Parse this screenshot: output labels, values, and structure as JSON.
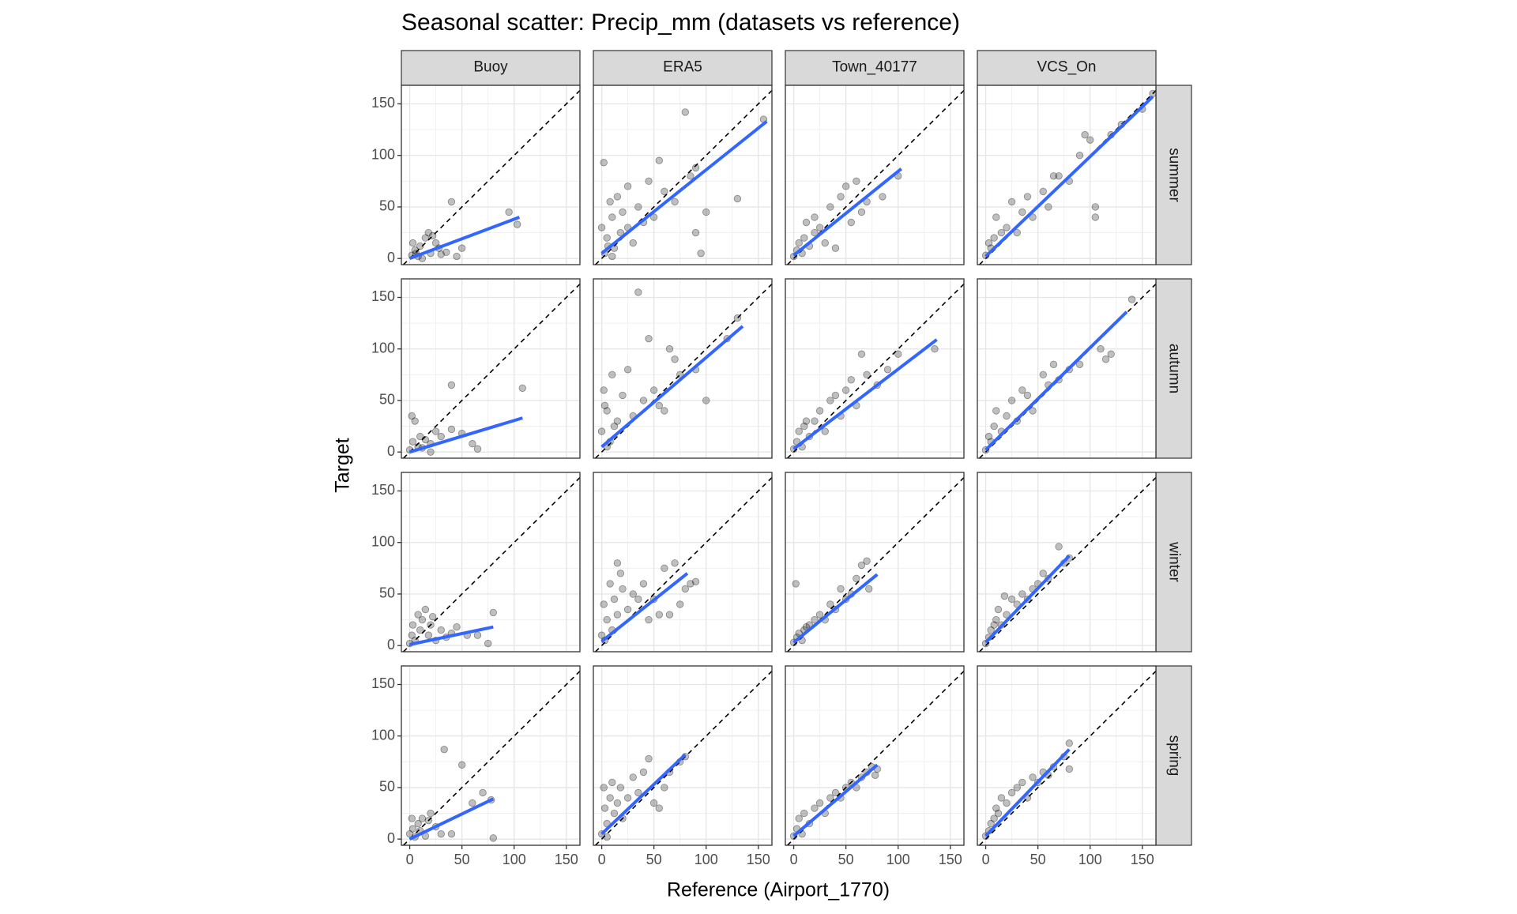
{
  "chart_data": {
    "type": "scatter",
    "title": "Seasonal scatter: Precip_mm (datasets vs reference)",
    "x_label": "Reference (Airport_1770)",
    "y_label": "Target",
    "columns": [
      "Buoy",
      "ERA5",
      "Town_40177",
      "VCS_On"
    ],
    "rows": [
      "summer",
      "autumn",
      "winter",
      "spring"
    ],
    "xlim": [
      -8,
      163
    ],
    "ylim": [
      -6,
      168
    ],
    "xticks": [
      0,
      50,
      100,
      150
    ],
    "yticks": [
      0,
      50,
      100,
      150
    ],
    "xminor": [
      25,
      75,
      125
    ],
    "yminor": [
      25,
      75,
      125
    ],
    "grid": true,
    "point_color": "#000000",
    "point_alpha": 0.25,
    "fit_color": "#3366FF",
    "panels": [
      [
        {
          "x": [
            2,
            5,
            8,
            10,
            15,
            18,
            20,
            25,
            30,
            35,
            40,
            50,
            95,
            103,
            12,
            3,
            22,
            45,
            28,
            6
          ],
          "y": [
            3,
            8,
            2,
            12,
            20,
            25,
            5,
            15,
            4,
            6,
            55,
            10,
            45,
            33,
            0,
            15,
            22,
            2,
            10,
            5
          ],
          "fit_x": [
            0,
            105
          ],
          "fit_y": [
            0,
            40
          ]
        },
        {
          "x": [
            0,
            2,
            5,
            8,
            10,
            12,
            15,
            18,
            20,
            25,
            30,
            35,
            40,
            45,
            50,
            55,
            60,
            70,
            80,
            85,
            90,
            90,
            95,
            100,
            130,
            155,
            3,
            6,
            10,
            25
          ],
          "y": [
            30,
            93,
            20,
            55,
            40,
            10,
            60,
            25,
            45,
            70,
            15,
            50,
            35,
            75,
            40,
            95,
            65,
            55,
            142,
            80,
            25,
            88,
            5,
            45,
            58,
            135,
            5,
            12,
            2,
            30
          ],
          "fit_x": [
            0,
            158
          ],
          "fit_y": [
            5,
            133
          ]
        },
        {
          "x": [
            0,
            3,
            5,
            8,
            10,
            15,
            20,
            25,
            30,
            35,
            40,
            45,
            50,
            55,
            60,
            65,
            70,
            85,
            100,
            12,
            20
          ],
          "y": [
            2,
            8,
            15,
            5,
            20,
            12,
            25,
            30,
            15,
            50,
            10,
            60,
            70,
            35,
            75,
            45,
            55,
            60,
            80,
            35,
            40
          ],
          "fit_x": [
            0,
            103
          ],
          "fit_y": [
            3,
            87
          ]
        },
        {
          "x": [
            0,
            5,
            8,
            10,
            15,
            20,
            25,
            30,
            35,
            40,
            45,
            55,
            60,
            65,
            70,
            80,
            90,
            95,
            100,
            105,
            105,
            120,
            130,
            150,
            160,
            3
          ],
          "y": [
            3,
            10,
            20,
            40,
            25,
            30,
            55,
            25,
            45,
            60,
            40,
            65,
            50,
            80,
            80,
            75,
            100,
            120,
            115,
            40,
            50,
            120,
            130,
            145,
            160,
            15
          ],
          "fit_x": [
            0,
            160
          ],
          "fit_y": [
            2,
            157
          ]
        }
      ],
      [
        {
          "x": [
            0,
            3,
            5,
            8,
            10,
            15,
            20,
            25,
            30,
            40,
            60,
            65,
            40,
            108,
            20,
            12,
            50,
            2
          ],
          "y": [
            2,
            10,
            30,
            5,
            15,
            12,
            8,
            20,
            15,
            22,
            8,
            3,
            65,
            62,
            0,
            4,
            18,
            35
          ],
          "fit_x": [
            0,
            108
          ],
          "fit_y": [
            0,
            33
          ]
        },
        {
          "x": [
            0,
            2,
            5,
            8,
            10,
            15,
            20,
            25,
            30,
            35,
            40,
            45,
            50,
            55,
            60,
            65,
            70,
            75,
            90,
            100,
            120,
            130,
            5,
            12,
            3
          ],
          "y": [
            20,
            60,
            40,
            10,
            75,
            30,
            55,
            80,
            35,
            155,
            50,
            110,
            60,
            45,
            40,
            100,
            90,
            75,
            80,
            50,
            110,
            130,
            5,
            25,
            45
          ],
          "fit_x": [
            0,
            135
          ],
          "fit_y": [
            5,
            122
          ]
        },
        {
          "x": [
            0,
            3,
            5,
            8,
            10,
            15,
            20,
            25,
            30,
            35,
            40,
            45,
            50,
            55,
            60,
            65,
            70,
            80,
            90,
            100,
            135,
            12
          ],
          "y": [
            3,
            10,
            20,
            5,
            25,
            15,
            30,
            40,
            20,
            50,
            55,
            35,
            60,
            70,
            45,
            95,
            75,
            65,
            80,
            95,
            100,
            30
          ],
          "fit_x": [
            0,
            137
          ],
          "fit_y": [
            3,
            109
          ]
        },
        {
          "x": [
            0,
            5,
            8,
            10,
            15,
            20,
            25,
            30,
            35,
            40,
            45,
            55,
            60,
            65,
            70,
            80,
            90,
            110,
            115,
            120,
            140,
            3
          ],
          "y": [
            2,
            10,
            25,
            40,
            20,
            35,
            50,
            30,
            60,
            55,
            40,
            75,
            65,
            85,
            70,
            80,
            85,
            100,
            90,
            95,
            148,
            15
          ],
          "fit_x": [
            0,
            135
          ],
          "fit_y": [
            2,
            136
          ]
        }
      ],
      [
        {
          "x": [
            0,
            3,
            5,
            8,
            10,
            12,
            15,
            18,
            20,
            25,
            30,
            35,
            40,
            45,
            55,
            65,
            75,
            80,
            22,
            2
          ],
          "y": [
            2,
            20,
            5,
            30,
            15,
            25,
            35,
            10,
            20,
            5,
            15,
            8,
            12,
            18,
            10,
            10,
            2,
            32,
            28,
            10
          ],
          "fit_x": [
            0,
            80
          ],
          "fit_y": [
            1,
            18
          ]
        },
        {
          "x": [
            0,
            2,
            5,
            8,
            10,
            12,
            15,
            18,
            20,
            25,
            30,
            35,
            40,
            45,
            55,
            60,
            65,
            70,
            75,
            80,
            85,
            90,
            3,
            15,
            50
          ],
          "y": [
            10,
            40,
            25,
            60,
            15,
            45,
            30,
            70,
            55,
            35,
            50,
            45,
            60,
            25,
            30,
            75,
            30,
            80,
            40,
            55,
            60,
            62,
            5,
            80,
            45
          ],
          "fit_x": [
            0,
            82
          ],
          "fit_y": [
            4,
            70
          ]
        },
        {
          "x": [
            0,
            2,
            3,
            5,
            8,
            10,
            15,
            20,
            25,
            30,
            35,
            40,
            45,
            50,
            55,
            60,
            65,
            70,
            72,
            12
          ],
          "y": [
            3,
            60,
            8,
            12,
            5,
            15,
            20,
            25,
            30,
            25,
            40,
            35,
            55,
            45,
            50,
            65,
            78,
            82,
            55,
            18
          ],
          "fit_x": [
            0,
            80
          ],
          "fit_y": [
            3,
            69
          ]
        },
        {
          "x": [
            0,
            3,
            5,
            8,
            10,
            12,
            15,
            20,
            25,
            30,
            35,
            40,
            45,
            50,
            55,
            60,
            70,
            75,
            80,
            18
          ],
          "y": [
            2,
            8,
            15,
            20,
            25,
            35,
            20,
            30,
            45,
            40,
            50,
            45,
            55,
            60,
            70,
            65,
            96,
            80,
            85,
            48
          ],
          "fit_x": [
            0,
            80
          ],
          "fit_y": [
            3,
            87
          ]
        }
      ],
      [
        {
          "x": [
            0,
            2,
            3,
            5,
            8,
            10,
            12,
            15,
            20,
            25,
            30,
            33,
            40,
            50,
            60,
            70,
            78,
            80,
            18
          ],
          "y": [
            5,
            20,
            10,
            2,
            15,
            8,
            20,
            3,
            25,
            12,
            5,
            87,
            5,
            72,
            35,
            45,
            38,
            1,
            18
          ],
          "fit_x": [
            0,
            80
          ],
          "fit_y": [
            0,
            39
          ]
        },
        {
          "x": [
            0,
            2,
            3,
            5,
            8,
            10,
            12,
            15,
            18,
            20,
            25,
            30,
            35,
            40,
            45,
            50,
            55,
            60,
            65,
            75,
            80,
            5
          ],
          "y": [
            5,
            50,
            30,
            15,
            40,
            55,
            25,
            35,
            50,
            20,
            40,
            60,
            45,
            65,
            78,
            35,
            30,
            50,
            65,
            75,
            80,
            2
          ],
          "fit_x": [
            0,
            80
          ],
          "fit_y": [
            5,
            82
          ]
        },
        {
          "x": [
            0,
            3,
            5,
            8,
            10,
            15,
            20,
            25,
            30,
            35,
            40,
            45,
            50,
            55,
            60,
            65,
            70,
            75,
            78,
            80
          ],
          "y": [
            3,
            10,
            20,
            5,
            25,
            15,
            30,
            35,
            25,
            40,
            45,
            40,
            50,
            55,
            50,
            60,
            65,
            70,
            62,
            68
          ],
          "fit_x": [
            0,
            80
          ],
          "fit_y": [
            3,
            72
          ]
        },
        {
          "x": [
            0,
            3,
            5,
            8,
            10,
            12,
            15,
            20,
            25,
            30,
            35,
            40,
            45,
            50,
            55,
            60,
            65,
            75,
            80,
            80
          ],
          "y": [
            3,
            8,
            15,
            20,
            30,
            25,
            40,
            35,
            45,
            50,
            55,
            40,
            60,
            55,
            65,
            62,
            70,
            80,
            93,
            68
          ],
          "fit_x": [
            0,
            80
          ],
          "fit_y": [
            3,
            87
          ]
        }
      ]
    ]
  }
}
